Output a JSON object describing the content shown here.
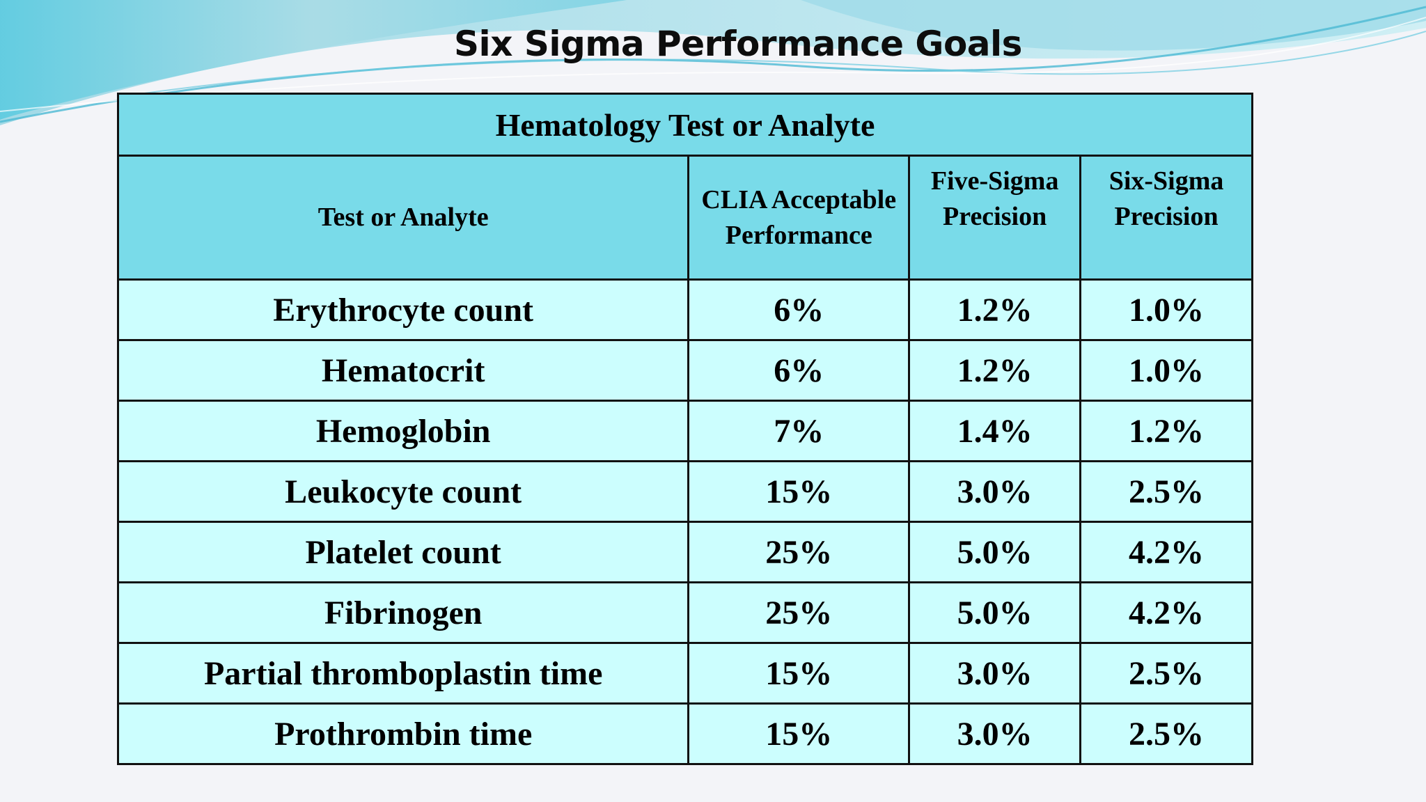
{
  "slide": {
    "title": "Six Sigma Performance Goals"
  },
  "table": {
    "band_header": "Hematology Test or Analyte",
    "columns": [
      "Test or Analyte",
      "CLIA Acceptable Performance",
      "Five-Sigma Precision",
      "Six-Sigma Precision"
    ],
    "rows": [
      {
        "analyte": "Erythrocyte count",
        "clia": "6%",
        "five_sigma": "1.2%",
        "six_sigma": "1.0%"
      },
      {
        "analyte": "Hematocrit",
        "clia": "6%",
        "five_sigma": "1.2%",
        "six_sigma": "1.0%"
      },
      {
        "analyte": "Hemoglobin",
        "clia": "7%",
        "five_sigma": "1.4%",
        "six_sigma": "1.2%"
      },
      {
        "analyte": "Leukocyte count",
        "clia": "15%",
        "five_sigma": "3.0%",
        "six_sigma": "2.5%"
      },
      {
        "analyte": "Platelet count",
        "clia": "25%",
        "five_sigma": "5.0%",
        "six_sigma": "4.2%"
      },
      {
        "analyte": "Fibrinogen",
        "clia": "25%",
        "five_sigma": "5.0%",
        "six_sigma": "4.2%"
      },
      {
        "analyte": "Partial thromboplastin time",
        "clia": "15%",
        "five_sigma": "3.0%",
        "six_sigma": "2.5%"
      },
      {
        "analyte": "Prothrombin time",
        "clia": "15%",
        "five_sigma": "3.0%",
        "six_sigma": "2.5%"
      }
    ]
  },
  "colors": {
    "header_fill": "#79dbe9",
    "body_fill": "#ccfefe",
    "border": "#111111",
    "wave_accent": "#5cc6df"
  }
}
